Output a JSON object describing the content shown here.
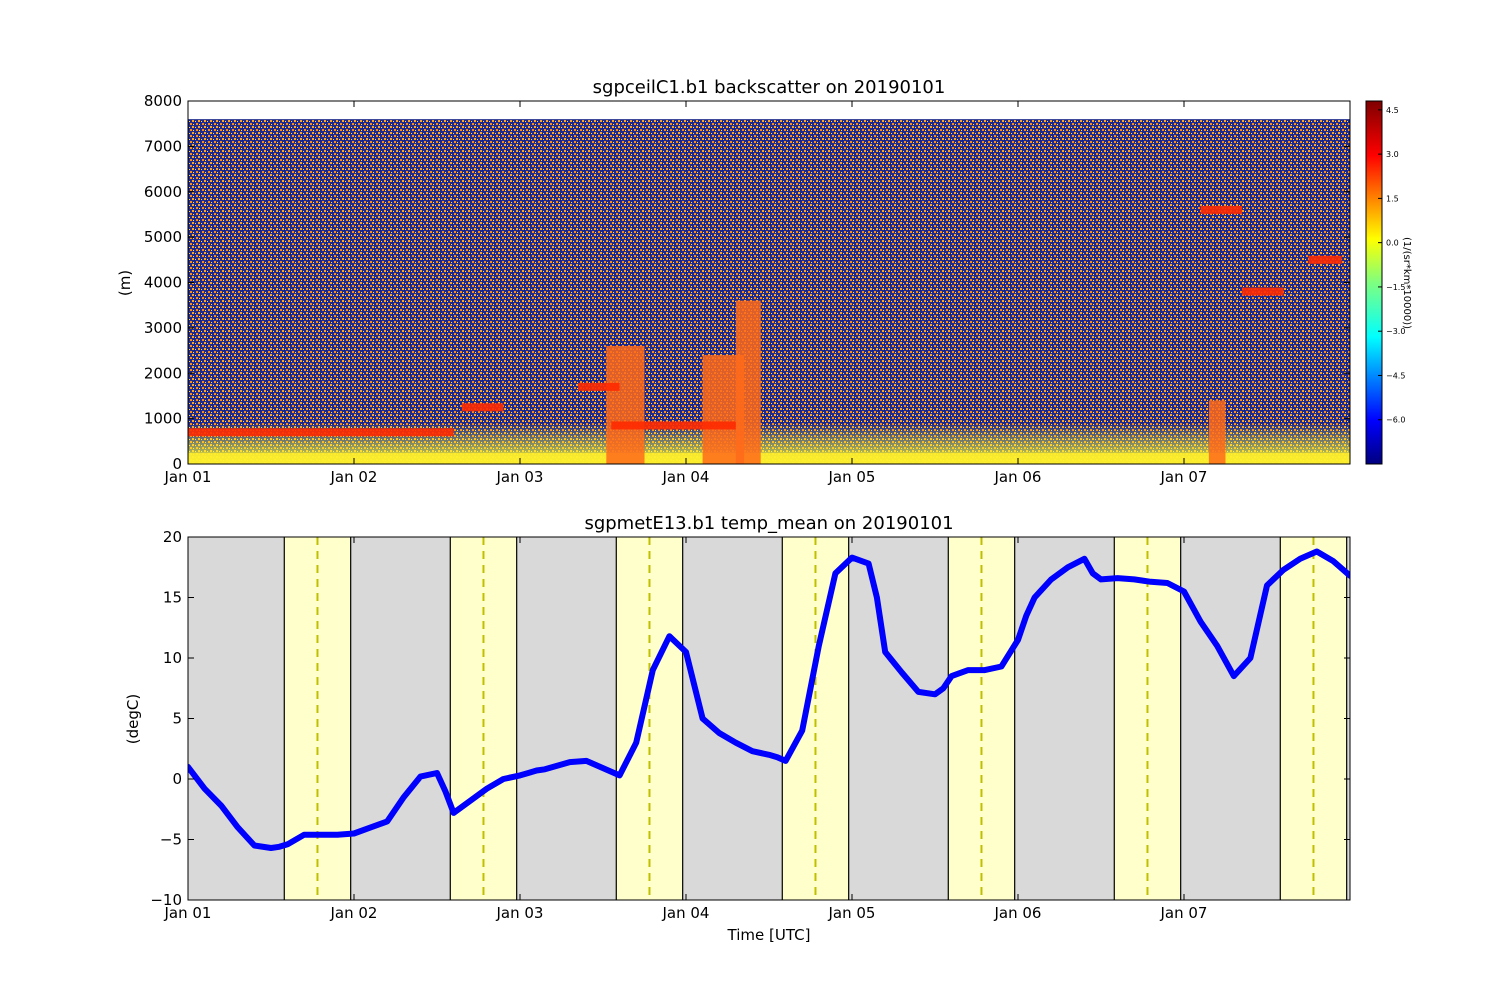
{
  "chart_data": [
    {
      "type": "heatmap",
      "title": "sgpceilC1.b1 backscatter on 20190101",
      "xlabel": "",
      "ylabel": "(m)",
      "xlim": [
        "2019-01-01",
        "2019-01-08"
      ],
      "ylim": [
        0,
        8000
      ],
      "x_ticks": [
        "Jan 01",
        "Jan 02",
        "Jan 03",
        "Jan 04",
        "Jan 05",
        "Jan 06",
        "Jan 07"
      ],
      "y_ticks": [
        0,
        1000,
        2000,
        3000,
        4000,
        5000,
        6000,
        7000,
        8000
      ],
      "data_top_m": 7600,
      "colormap": "jet",
      "colorbar": {
        "label": "(1/(sr*km*10000))",
        "ticks": [
          "4.5",
          "3.0",
          "1.5",
          "0.0",
          "−1.5",
          "−3.0",
          "−4.5",
          "−6.0"
        ],
        "range": [
          -7.5,
          4.8
        ]
      },
      "cloud_layers": [
        {
          "day_start": 0.0,
          "day_end": 1.6,
          "height_m": 700,
          "value": 3.8
        },
        {
          "day_start": 1.65,
          "day_end": 1.9,
          "height_m": 1250,
          "value": 3.5
        },
        {
          "day_start": 2.35,
          "day_end": 2.6,
          "height_m": 1700,
          "value": 3.6
        },
        {
          "day_start": 2.55,
          "day_end": 3.3,
          "height_m": 850,
          "value": 3.4
        },
        {
          "day_start": 6.1,
          "day_end": 6.35,
          "height_m": 5600,
          "value": 3.2
        },
        {
          "day_start": 6.35,
          "day_end": 6.6,
          "height_m": 3800,
          "value": 3.0
        },
        {
          "day_start": 6.75,
          "day_end": 6.95,
          "height_m": 4500,
          "value": 3.0
        }
      ],
      "precip_columns": [
        {
          "day_start": 2.52,
          "day_end": 2.75,
          "top_m": 2600
        },
        {
          "day_start": 3.1,
          "day_end": 3.35,
          "top_m": 2400
        },
        {
          "day_start": 3.3,
          "day_end": 3.45,
          "top_m": 3600
        },
        {
          "day_start": 6.15,
          "day_end": 6.25,
          "top_m": 1400
        }
      ]
    },
    {
      "type": "line",
      "title": "sgpmetE13.b1 temp_mean on 20190101",
      "xlabel": "Time [UTC]",
      "ylabel": "(degC)",
      "xlim": [
        "2019-01-01",
        "2019-01-08"
      ],
      "ylim": [
        -10,
        20
      ],
      "x_ticks": [
        "Jan 01",
        "Jan 02",
        "Jan 03",
        "Jan 04",
        "Jan 05",
        "Jan 06",
        "Jan 07"
      ],
      "y_ticks": [
        "−10",
        "−5",
        "0",
        "5",
        "10",
        "15",
        "20"
      ],
      "grid": false,
      "series": [
        {
          "color": "#0000ff",
          "x_days": [
            0.0,
            0.1,
            0.2,
            0.3,
            0.4,
            0.5,
            0.55,
            0.6,
            0.7,
            0.8,
            0.9,
            1.0,
            1.1,
            1.2,
            1.3,
            1.4,
            1.5,
            1.55,
            1.6,
            1.7,
            1.8,
            1.9,
            2.0,
            2.05,
            2.1,
            2.15,
            2.2,
            2.3,
            2.4,
            2.5,
            2.6,
            2.7,
            2.8,
            2.9,
            3.0,
            3.1,
            3.2,
            3.3,
            3.4,
            3.5,
            3.55,
            3.6,
            3.7,
            3.8,
            3.9,
            4.0,
            4.1,
            4.15,
            4.2,
            4.3,
            4.4,
            4.5,
            4.55,
            4.6,
            4.7,
            4.8,
            4.9,
            5.0,
            5.05,
            5.1,
            5.2,
            5.3,
            5.4,
            5.45,
            5.5,
            5.6,
            5.7,
            5.8,
            5.9,
            6.0,
            6.1,
            6.2,
            6.3,
            6.4,
            6.45,
            6.5,
            6.6,
            6.7,
            6.8,
            6.9,
            7.0,
            7.1,
            7.2,
            7.3,
            7.4,
            7.5,
            7.55,
            7.6,
            7.7,
            7.8,
            7.9,
            8.0
          ],
          "y": [
            1.0,
            -0.8,
            -2.2,
            -4.0,
            -5.5,
            -5.7,
            -5.6,
            -5.4,
            -4.6,
            -4.6,
            -4.6,
            -4.5,
            -4.0,
            -3.5,
            -1.5,
            0.2,
            0.5,
            -1.0,
            -2.8,
            -1.8,
            -0.8,
            0.0,
            0.3,
            0.5,
            0.7,
            0.8,
            1.0,
            1.4,
            1.5,
            0.9,
            0.3,
            3.0,
            9.0,
            11.8,
            10.5,
            5.0,
            3.8,
            3.0,
            2.3,
            2.0,
            1.8,
            1.5,
            4.0,
            11.0,
            17.0,
            18.3,
            17.8,
            15.0,
            10.5,
            8.8,
            7.2,
            7.0,
            7.5,
            8.5,
            9.0,
            9.0,
            9.3,
            11.5,
            13.5,
            15.0,
            16.5,
            17.5,
            18.2,
            17.0,
            16.5,
            16.6,
            16.5,
            16.3,
            16.2,
            15.5,
            13.0,
            11.0,
            8.5,
            10.0,
            13.0,
            16.0,
            17.3,
            18.2,
            18.8,
            18.0,
            16.8,
            16.0,
            15.4,
            15.3,
            15.2,
            15.1,
            15.0,
            15.0,
            15.0,
            15.0,
            15.0,
            15.0
          ]
        }
      ],
      "daylight_spans": [
        {
          "start_day": 0.58,
          "end_day": 0.98,
          "noon_day": 0.78
        },
        {
          "start_day": 1.58,
          "end_day": 1.98,
          "noon_day": 1.78
        },
        {
          "start_day": 2.58,
          "end_day": 2.98,
          "noon_day": 2.78
        },
        {
          "start_day": 3.58,
          "end_day": 3.98,
          "noon_day": 3.78
        },
        {
          "start_day": 4.58,
          "end_day": 4.98,
          "noon_day": 4.78
        },
        {
          "start_day": 5.58,
          "end_day": 5.98,
          "noon_day": 5.78
        },
        {
          "start_day": 6.58,
          "end_day": 6.98,
          "noon_day": 6.78
        }
      ],
      "colors": {
        "night": "#d9d9d9",
        "day": "#ffffcc",
        "noon_line": "#bfbf00",
        "line": "#0000ff"
      }
    }
  ]
}
